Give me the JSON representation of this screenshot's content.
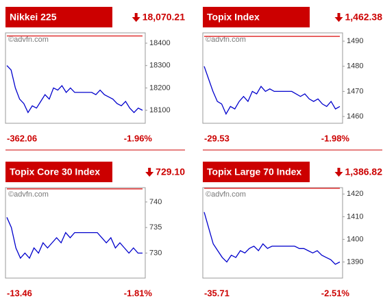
{
  "chart_data": [
    {
      "type": "line",
      "title": "Nikkei 225",
      "last": "18,070.21",
      "change": "-362.06",
      "change_pct": "-1.96%",
      "watermark": "©advfn.com",
      "color": "#0000cc",
      "ref_color": "#e03030",
      "ref": 18432.27,
      "ylim": [
        18042,
        18446
      ],
      "yticks": [
        18100,
        18200,
        18300,
        18400
      ],
      "values": [
        18300,
        18280,
        18200,
        18150,
        18130,
        18090,
        18120,
        18110,
        18140,
        18170,
        18150,
        18200,
        18190,
        18210,
        18180,
        18200,
        18180,
        18180,
        18180,
        18180,
        18180,
        18170,
        18190,
        18170,
        18160,
        18150,
        18130,
        18120,
        18140,
        18110,
        18090,
        18110,
        18100
      ]
    },
    {
      "type": "line",
      "title": "Topix Index",
      "last": "1,462.38",
      "change": "-29.53",
      "change_pct": "-1.98%",
      "watermark": "©advfn.com",
      "color": "#0000cc",
      "ref_color": "#e03030",
      "ref": 1491.91,
      "ylim": [
        1457.3,
        1493.3
      ],
      "yticks": [
        1460,
        1470,
        1480,
        1490
      ],
      "values": [
        1480,
        1475,
        1470,
        1466,
        1465,
        1461,
        1464,
        1463,
        1466,
        1468,
        1466,
        1470,
        1469,
        1472,
        1470,
        1471,
        1470,
        1470,
        1470,
        1470,
        1470,
        1469,
        1468,
        1469,
        1467,
        1466,
        1467,
        1465,
        1464,
        1466,
        1463,
        1464
      ]
    },
    {
      "type": "line",
      "title": "Topix Core 30 Index",
      "last": "729.10",
      "change": "-13.46",
      "change_pct": "-1.81%",
      "watermark": "©advfn.com",
      "color": "#0000cc",
      "ref_color": "#e03030",
      "ref": 742.56,
      "ylim": [
        725.1,
        742.8
      ],
      "yticks": [
        730,
        735,
        740
      ],
      "values": [
        737,
        735,
        731,
        729,
        730,
        729,
        731,
        730,
        732,
        731,
        732,
        733,
        732,
        734,
        733,
        734,
        734,
        734,
        734,
        734,
        734,
        733,
        732,
        733,
        731,
        732,
        731,
        730,
        731,
        730,
        730
      ]
    },
    {
      "type": "line",
      "title": "Topix Large 70 Index",
      "last": "1,386.82",
      "change": "-35.71",
      "change_pct": "-2.51%",
      "watermark": "©advfn.com",
      "color": "#0000cc",
      "ref_color": "#e03030",
      "ref": 1422.53,
      "ylim": [
        1382.9,
        1422.8
      ],
      "yticks": [
        1390,
        1400,
        1410,
        1420
      ],
      "values": [
        1412,
        1405,
        1398,
        1395,
        1392,
        1390,
        1393,
        1392,
        1395,
        1394,
        1396,
        1397,
        1395,
        1398,
        1396,
        1397,
        1397,
        1397,
        1397,
        1397,
        1397,
        1396,
        1396,
        1395,
        1394,
        1395,
        1393,
        1392,
        1391,
        1389,
        1390
      ]
    }
  ]
}
